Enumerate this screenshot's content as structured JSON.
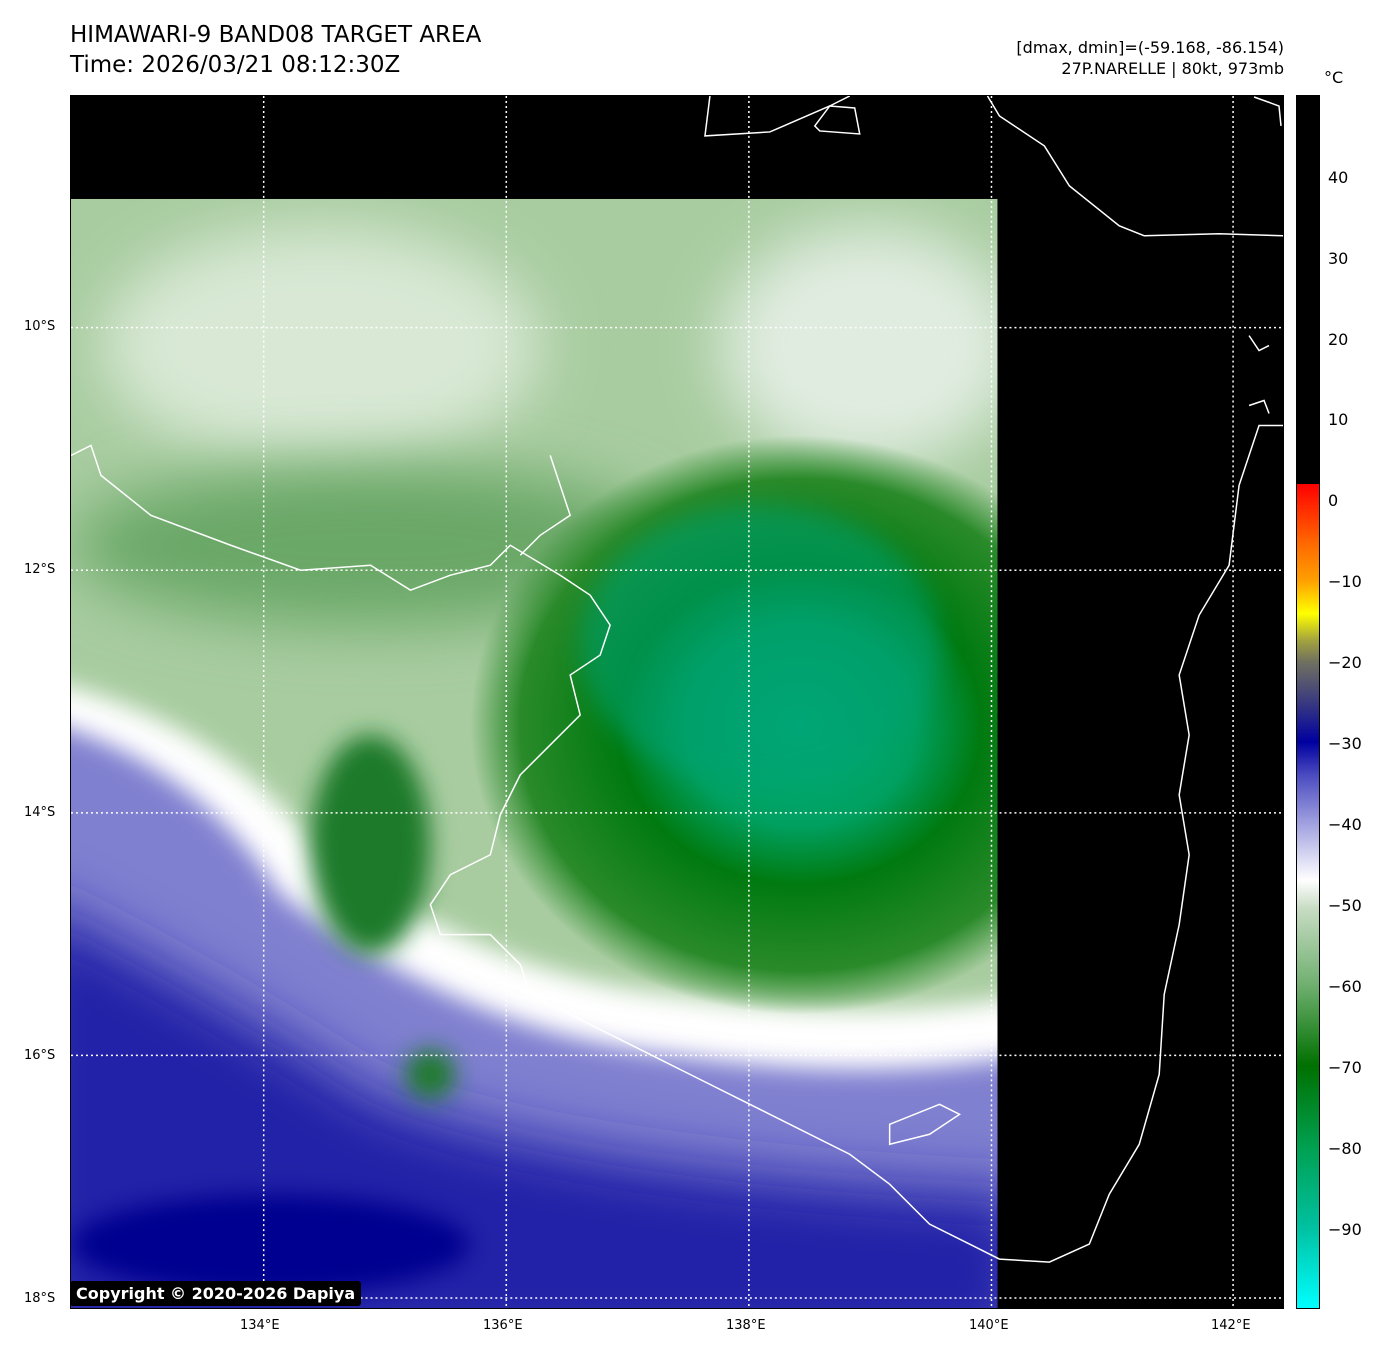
{
  "title": {
    "line1": "HIMAWARI-9 BAND08 TARGET AREA",
    "line2": "Time: 2026/03/21 08:12:30Z"
  },
  "info": {
    "line1": "[dmax, dmin]=(-59.168, -86.154)",
    "line2": "27P.NARELLE | 80kt, 973mb"
  },
  "colorbar": {
    "unit": "°C",
    "ticks": [
      "40",
      "30",
      "20",
      "10",
      "0",
      "−10",
      "−20",
      "−30",
      "−40",
      "−50",
      "−60",
      "−70",
      "−80",
      "−90"
    ],
    "range": [
      -100,
      50
    ]
  },
  "axes": {
    "lat_ticks": [
      "10°S",
      "12°S",
      "14°S",
      "16°S",
      "18°S"
    ],
    "lon_ticks": [
      "134°E",
      "136°E",
      "138°E",
      "140°E",
      "142°E"
    ]
  },
  "copyright": "Copyright © 2020-2026 Dapiya"
}
